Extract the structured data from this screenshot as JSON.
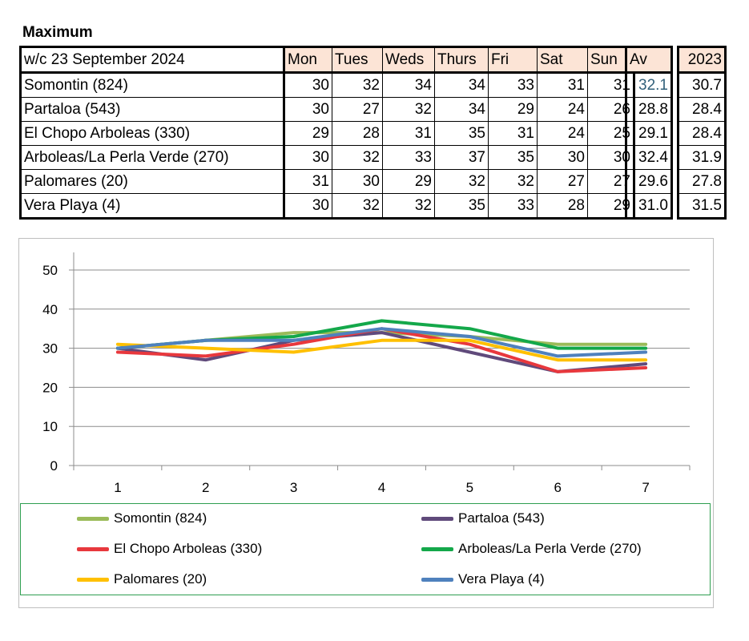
{
  "title": "Maximum",
  "table": {
    "week_label": "w/c  23 September 2024",
    "days": [
      "Mon",
      "Tues",
      "Weds",
      "Thurs",
      "Fri",
      "Sat",
      "Sun"
    ],
    "av_header": "Av",
    "year_header": "2023",
    "rows": [
      {
        "name": "Somontin (824)",
        "values": [
          "30",
          "32",
          "34",
          "34",
          "33",
          "31",
          "31"
        ],
        "av": "32.1",
        "y2023": "30.7"
      },
      {
        "name": "Partaloa (543)",
        "values": [
          "30",
          "27",
          "32",
          "34",
          "29",
          "24",
          "26"
        ],
        "av": "28.8",
        "y2023": "28.4"
      },
      {
        "name": "El Chopo  Arboleas (330)",
        "values": [
          "29",
          "28",
          "31",
          "35",
          "31",
          "24",
          "25"
        ],
        "av": "29.1",
        "y2023": "28.4"
      },
      {
        "name": "Arboleas/La Perla Verde (270)",
        "values": [
          "30",
          "32",
          "33",
          "37",
          "35",
          "30",
          "30"
        ],
        "av": "32.4",
        "y2023": "31.9"
      },
      {
        "name": "Palomares (20)",
        "values": [
          "31",
          "30",
          "29",
          "32",
          "32",
          "27",
          "27"
        ],
        "av": "29.6",
        "y2023": "27.8"
      },
      {
        "name": "Vera Playa (4)",
        "values": [
          "30",
          "32",
          "32",
          "35",
          "33",
          "28",
          "29"
        ],
        "av": "31.0",
        "y2023": "31.5"
      }
    ]
  },
  "chart_data": {
    "type": "line",
    "title": "",
    "xlabel": "",
    "ylabel": "",
    "x": [
      1,
      2,
      3,
      4,
      5,
      6,
      7
    ],
    "x_tick_labels": [
      "1",
      "2",
      "3",
      "4",
      "5",
      "6",
      "7"
    ],
    "y_tick_labels": [
      "0",
      "10",
      "20",
      "30",
      "40",
      "50"
    ],
    "ylim": [
      0,
      50
    ],
    "grid": true,
    "legend_position": "bottom",
    "series": [
      {
        "name": "Somontin (824)",
        "color": "#9bbb59",
        "values": [
          30,
          32,
          34,
          34,
          33,
          31,
          31
        ]
      },
      {
        "name": "Partaloa (543)",
        "color": "#604a7b",
        "values": [
          30,
          27,
          32,
          34,
          29,
          24,
          26
        ]
      },
      {
        "name": "El Chopo  Arboleas (330)",
        "color": "#e8383d",
        "values": [
          29,
          28,
          31,
          35,
          31,
          24,
          25
        ]
      },
      {
        "name": "Arboleas/La Perla Verde (270)",
        "color": "#14a84a",
        "values": [
          30,
          32,
          33,
          37,
          35,
          30,
          30
        ]
      },
      {
        "name": "Palomares (20)",
        "color": "#ffc000",
        "values": [
          31,
          30,
          29,
          32,
          32,
          27,
          27
        ]
      },
      {
        "name": "Vera Playa (4)",
        "color": "#4f81bd",
        "values": [
          30,
          32,
          32,
          35,
          33,
          28,
          29
        ]
      }
    ]
  }
}
